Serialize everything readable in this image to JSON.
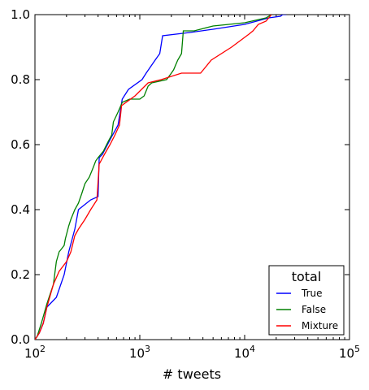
{
  "chart_data": {
    "type": "line",
    "x_scale": "log",
    "xlim": [
      100,
      100000
    ],
    "ylim": [
      0.0,
      1.0
    ],
    "xlabel": "# tweets",
    "ylabel": "",
    "title": "",
    "x_ticks": [
      {
        "base": "10",
        "exp": "2",
        "value": 100
      },
      {
        "base": "10",
        "exp": "3",
        "value": 1000
      },
      {
        "base": "10",
        "exp": "4",
        "value": 10000
      },
      {
        "base": "10",
        "exp": "5",
        "value": 100000
      }
    ],
    "y_ticks": [
      "0.0",
      "0.2",
      "0.4",
      "0.6",
      "0.8",
      "1.0"
    ],
    "y_tick_values": [
      0.0,
      0.2,
      0.4,
      0.6,
      0.8,
      1.0
    ],
    "grid": false,
    "legend": {
      "title": "total",
      "placement": "lower-right"
    },
    "series": [
      {
        "name": "True",
        "color": "#0000ff",
        "x": [
          100,
          110,
          120,
          130,
          160,
          190,
          210,
          240,
          260,
          340,
          400,
          410,
          440,
          530,
          620,
          680,
          780,
          1050,
          1150,
          1400,
          1550,
          1650,
          3000,
          5000,
          10000,
          17000,
          22000,
          23000,
          25000
        ],
        "y": [
          0.0,
          0.02,
          0.05,
          0.1,
          0.13,
          0.2,
          0.27,
          0.34,
          0.4,
          0.43,
          0.44,
          0.56,
          0.57,
          0.62,
          0.66,
          0.74,
          0.77,
          0.8,
          0.82,
          0.86,
          0.88,
          0.935,
          0.945,
          0.955,
          0.97,
          0.99,
          0.995,
          1.0,
          1.0
        ]
      },
      {
        "name": "False",
        "color": "#008000",
        "x": [
          100,
          105,
          115,
          130,
          150,
          160,
          170,
          180,
          190,
          195,
          210,
          220,
          240,
          260,
          280,
          300,
          330,
          360,
          380,
          400,
          450,
          500,
          540,
          560,
          620,
          680,
          800,
          1000,
          1100,
          1200,
          1300,
          1800,
          2000,
          2100,
          2300,
          2500,
          2600,
          3300,
          5000,
          10000,
          16000,
          18000
        ],
        "y": [
          0.0,
          0.01,
          0.05,
          0.11,
          0.17,
          0.24,
          0.27,
          0.28,
          0.29,
          0.31,
          0.35,
          0.37,
          0.4,
          0.42,
          0.45,
          0.48,
          0.5,
          0.53,
          0.55,
          0.56,
          0.58,
          0.61,
          0.63,
          0.67,
          0.7,
          0.73,
          0.74,
          0.74,
          0.75,
          0.78,
          0.79,
          0.8,
          0.82,
          0.83,
          0.86,
          0.88,
          0.95,
          0.95,
          0.965,
          0.975,
          0.99,
          1.0
        ]
      },
      {
        "name": "Mixture",
        "color": "#ff0000",
        "x": [
          100,
          110,
          120,
          130,
          150,
          170,
          200,
          220,
          240,
          260,
          300,
          340,
          390,
          410,
          460,
          520,
          580,
          640,
          670,
          900,
          1200,
          1600,
          2500,
          3800,
          4800,
          7500,
          11000,
          12000,
          13500,
          16000,
          18000
        ],
        "y": [
          0.0,
          0.02,
          0.05,
          0.1,
          0.17,
          0.21,
          0.24,
          0.27,
          0.32,
          0.34,
          0.37,
          0.4,
          0.43,
          0.54,
          0.57,
          0.6,
          0.63,
          0.66,
          0.72,
          0.75,
          0.79,
          0.8,
          0.82,
          0.82,
          0.86,
          0.9,
          0.94,
          0.95,
          0.97,
          0.98,
          1.0
        ]
      }
    ]
  }
}
